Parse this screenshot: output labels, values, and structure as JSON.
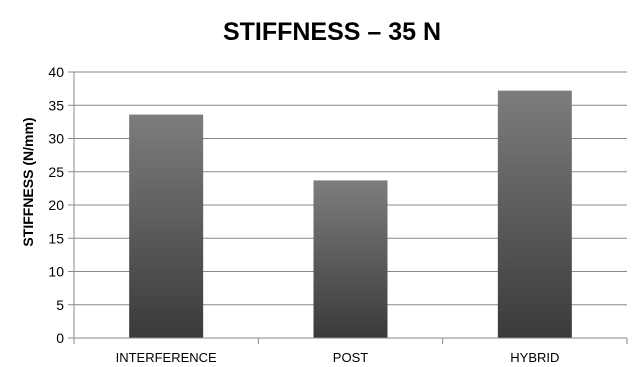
{
  "chart_data": {
    "type": "bar",
    "title": "STIFFNESS – 35 N",
    "xlabel": "",
    "ylabel": "STIFFNESS (N/mm)",
    "categories": [
      "INTERFERENCE",
      "POST",
      "HYBRID"
    ],
    "values": [
      33.6,
      23.7,
      37.2
    ],
    "ylim": [
      0,
      40
    ],
    "yticks": [
      0,
      5,
      10,
      15,
      20,
      25,
      30,
      35,
      40
    ],
    "grid": true,
    "legend": "none",
    "colors": {
      "bar_light": "#7d7d7d",
      "bar_dark": "#3a3a3a",
      "grid": "#888888",
      "axis": "#888888"
    }
  }
}
